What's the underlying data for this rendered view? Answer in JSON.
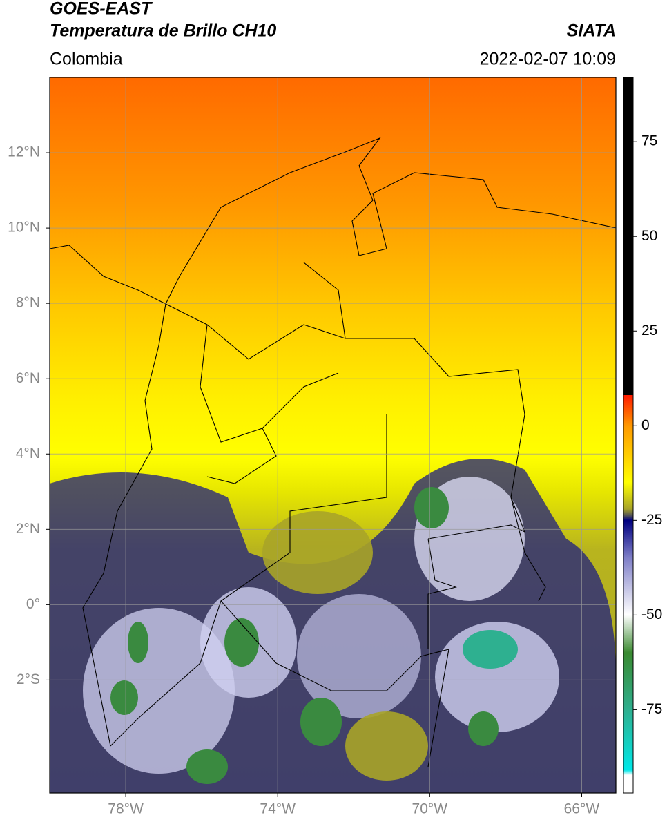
{
  "header": {
    "title": "GOES-EAST",
    "subtitle": "Temperatura de Brillo CH10",
    "source": "SIATA",
    "region": "Colombia",
    "datetime": "2022-02-07 10:09"
  },
  "map": {
    "xlim": [
      -80,
      -65.1
    ],
    "ylim": [
      -5,
      14
    ],
    "xticks": [
      {
        "value": -78,
        "label": "78°W"
      },
      {
        "value": -74,
        "label": "74°W"
      },
      {
        "value": -70,
        "label": "70°W"
      },
      {
        "value": -66,
        "label": "66°W"
      }
    ],
    "yticks": [
      {
        "value": 12,
        "label": "12°N"
      },
      {
        "value": 10,
        "label": "10°N"
      },
      {
        "value": 8,
        "label": "8°N"
      },
      {
        "value": 6,
        "label": "6°N"
      },
      {
        "value": 4,
        "label": "4°N"
      },
      {
        "value": 2,
        "label": "2°N"
      },
      {
        "value": 0,
        "label": "0°"
      },
      {
        "value": -2,
        "label": "2°S"
      }
    ],
    "grid": true
  },
  "colorbar": {
    "ylim": [
      -97,
      92
    ],
    "ticks": [
      75,
      50,
      25,
      0,
      -25,
      -50,
      -75
    ]
  }
}
